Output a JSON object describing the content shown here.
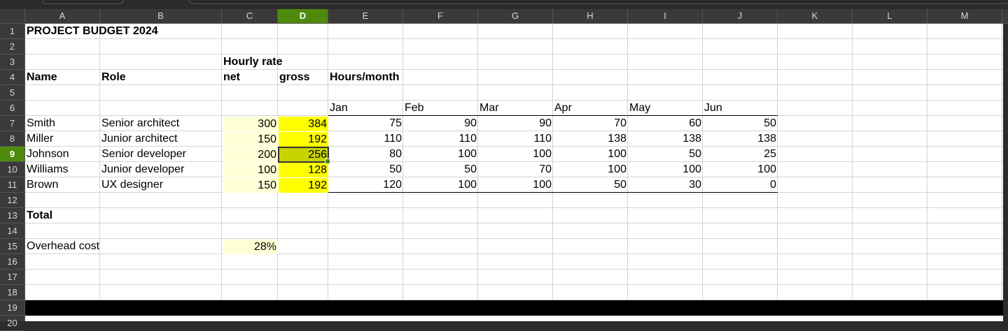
{
  "app": {
    "active_cell": "D9",
    "accent_color": "#4e8a0c",
    "light_fill_color": "#ffffd7",
    "yellow_fill_color": "#ffff00"
  },
  "columns": [
    "A",
    "B",
    "C",
    "D",
    "E",
    "F",
    "G",
    "H",
    "I",
    "J",
    "K",
    "L",
    "M"
  ],
  "rows": [
    "1",
    "2",
    "3",
    "4",
    "5",
    "6",
    "7",
    "8",
    "9",
    "10",
    "11",
    "12",
    "13",
    "14",
    "15",
    "16",
    "17",
    "18",
    "19",
    "20"
  ],
  "sheet": {
    "title": "PROJECT BUDGET 2024",
    "hourly_rate_label": "Hourly rate",
    "headers": {
      "name": "Name",
      "role": "Role",
      "net": "net",
      "gross": "gross",
      "hours_month": "Hours/month"
    },
    "months": [
      "Jan",
      "Feb",
      "Mar",
      "Apr",
      "May",
      "Jun"
    ],
    "people": [
      {
        "name": "Smith",
        "role": "Senior architect",
        "net": "300",
        "gross": "384",
        "hours": [
          "75",
          "90",
          "90",
          "70",
          "60",
          "50"
        ]
      },
      {
        "name": "Miller",
        "role": "Junior architect",
        "net": "150",
        "gross": "192",
        "hours": [
          "110",
          "110",
          "110",
          "138",
          "138",
          "138"
        ]
      },
      {
        "name": "Johnson",
        "role": "Senior developer",
        "net": "200",
        "gross": "256",
        "hours": [
          "80",
          "100",
          "100",
          "100",
          "50",
          "25"
        ]
      },
      {
        "name": "Williams",
        "role": "Junior developer",
        "net": "100",
        "gross": "128",
        "hours": [
          "50",
          "50",
          "70",
          "100",
          "100",
          "100"
        ]
      },
      {
        "name": "Brown",
        "role": "UX designer",
        "net": "150",
        "gross": "192",
        "hours": [
          "120",
          "100",
          "100",
          "50",
          "30",
          "0"
        ]
      }
    ],
    "total_label": "Total",
    "overhead_label": "Overhead cost",
    "overhead_value": "28%"
  }
}
